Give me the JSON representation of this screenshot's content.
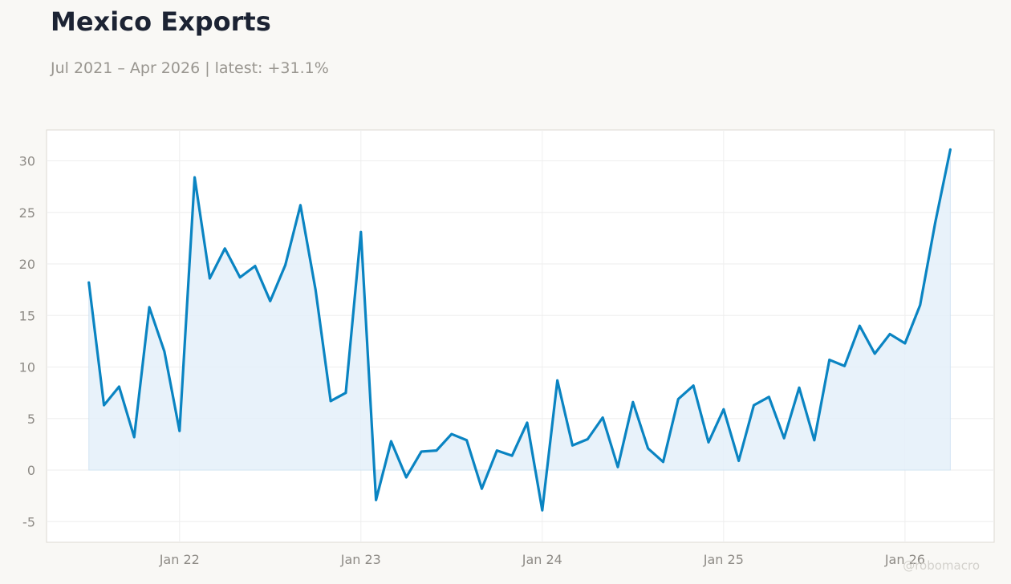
{
  "header": {
    "title": "Mexico Exports",
    "subtitle": "Jul 2021 – Apr 2026 | latest: +31.1%"
  },
  "watermark": "@robomacro",
  "colors": {
    "line": "#0a84c2",
    "fill": "#e6f1fa",
    "grid": "#eeeeee",
    "plot_bg": "#ffffff",
    "page_bg": "#f9f8f5",
    "border": "#dddad3"
  },
  "chart_data": {
    "type": "area",
    "x": [
      "2021-07",
      "2021-08",
      "2021-09",
      "2021-10",
      "2021-11",
      "2021-12",
      "2022-01",
      "2022-02",
      "2022-03",
      "2022-04",
      "2022-05",
      "2022-06",
      "2022-07",
      "2022-08",
      "2022-09",
      "2022-10",
      "2022-11",
      "2022-12",
      "2023-01",
      "2023-02",
      "2023-03",
      "2023-04",
      "2023-05",
      "2023-06",
      "2023-07",
      "2023-08",
      "2023-09",
      "2023-10",
      "2023-11",
      "2023-12",
      "2024-01",
      "2024-02",
      "2024-03",
      "2024-04",
      "2024-05",
      "2024-06",
      "2024-07",
      "2024-08",
      "2024-09",
      "2024-10",
      "2024-11",
      "2024-12",
      "2025-01",
      "2025-02",
      "2025-03",
      "2025-04",
      "2025-05",
      "2025-06",
      "2025-07",
      "2025-08",
      "2025-09",
      "2025-10",
      "2025-11",
      "2025-12",
      "2026-01",
      "2026-02",
      "2026-03",
      "2026-04"
    ],
    "series": [
      {
        "values": [
          18.2,
          6.3,
          8.1,
          3.2,
          15.8,
          11.5,
          3.8,
          28.4,
          18.6,
          21.5,
          18.7,
          19.8,
          16.4,
          19.9,
          25.7,
          17.5,
          6.7,
          7.5,
          23.1,
          -2.9,
          2.8,
          -0.7,
          1.8,
          1.9,
          3.5,
          2.9,
          -1.8,
          1.9,
          1.4,
          4.6,
          -3.9,
          8.7,
          2.4,
          3.0,
          5.1,
          0.3,
          6.6,
          2.1,
          0.8,
          6.9,
          8.2,
          2.7,
          5.9,
          0.9,
          6.3,
          7.1,
          3.1,
          8.0,
          2.9,
          10.7,
          10.1,
          14.0,
          11.3,
          13.2,
          12.3,
          16.0,
          24.0,
          31.1
        ]
      }
    ],
    "x_ticks": [
      "Jan 22",
      "Jan 23",
      "Jan 24",
      "Jan 25",
      "Jan 26"
    ],
    "x_tick_positions": [
      "2022-01",
      "2023-01",
      "2024-01",
      "2025-01",
      "2026-01"
    ],
    "y_ticks": [
      -5,
      0,
      5,
      10,
      15,
      20,
      25,
      30
    ],
    "ylim": [
      -7,
      33
    ],
    "grid": true,
    "legend": "none"
  }
}
